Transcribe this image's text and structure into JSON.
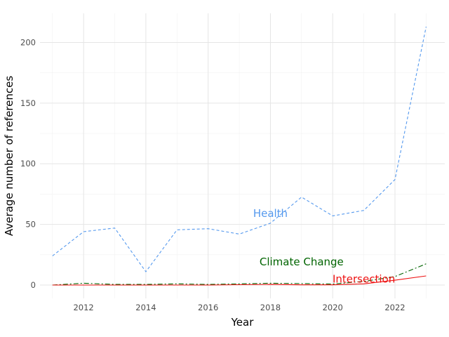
{
  "chart_data": {
    "type": "line",
    "xlabel": "Year",
    "ylabel": "Average number of references",
    "xlim": [
      2010.6,
      2023.6
    ],
    "ylim": [
      -11,
      224
    ],
    "x_ticks": [
      2012,
      2014,
      2016,
      2018,
      2020,
      2022
    ],
    "y_ticks": [
      0,
      50,
      100,
      150,
      200
    ],
    "grid": true,
    "x": [
      2011,
      2012,
      2013,
      2014,
      2015,
      2016,
      2017,
      2018,
      2019,
      2020,
      2021,
      2022,
      2023
    ],
    "series": [
      {
        "name": "Health",
        "color": "#5599ee",
        "dash": "dashed",
        "label_at": [
          2018,
          59
        ],
        "values": [
          24,
          44,
          47,
          11,
          45.5,
          46.5,
          42,
          51,
          72.5,
          57,
          61.5,
          87,
          213
        ]
      },
      {
        "name": "Climate Change",
        "color": "#006400",
        "dash": "dashdot",
        "label_at": [
          2019,
          19
        ],
        "values": [
          0,
          1.5,
          0.5,
          0.5,
          1,
          0.5,
          1,
          1.5,
          1.2,
          0.8,
          3,
          7,
          17.5
        ]
      },
      {
        "name": "Intersection",
        "color": "#ee1111",
        "dash": "solid",
        "label_at": [
          2021,
          5
        ],
        "values": [
          0,
          0,
          0,
          0,
          0,
          0,
          0.3,
          0.5,
          0.2,
          0.2,
          1,
          4,
          7.5
        ]
      }
    ]
  }
}
